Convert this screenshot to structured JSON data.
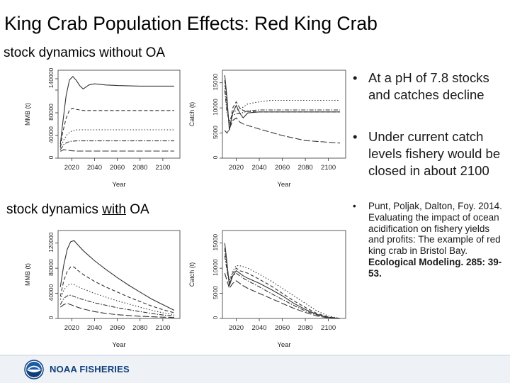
{
  "slide": {
    "title": "King Crab Population Effects: Red King Crab",
    "subtitle_without": "stock dynamics without OA",
    "subtitle_with_prefix": "stock dynamics ",
    "subtitle_with_emph": "with",
    "subtitle_with_suffix": " OA",
    "bullets": [
      {
        "marker": "•",
        "text": "At a pH of 7.8 stocks and catches decline"
      },
      {
        "marker": "•",
        "text": "Under current catch levels fishery would be closed in about 2100"
      }
    ],
    "citation": {
      "marker": "•",
      "text": "Punt, Poljak, Dalton, Foy. 2014. Evaluating the impact of ocean acidification on fishery yields and profits: The example of red king crab in Bristol Bay.",
      "journal": "Ecological Modeling. 285: 39-53."
    },
    "footer": {
      "logo_text": "NOAA FISHERIES",
      "logo_icon": "noaa-emblem-icon",
      "colors": {
        "brand": "#0f3f7a",
        "footer_bg": "#eef1f5"
      }
    }
  },
  "chart_data": [
    {
      "type": "line",
      "panel": "without-OA MMB",
      "xlabel": "Year",
      "ylabel": "MMB (t)",
      "xlim": [
        2008,
        2115
      ],
      "ylim": [
        0,
        155000
      ],
      "xticks": [
        2020,
        2040,
        2060,
        2080,
        2100
      ],
      "yticks": [
        0,
        40000,
        80000,
        120000,
        140000
      ],
      "ytick_labels": [
        "0",
        "40000",
        "80000",
        "",
        "140000"
      ],
      "grid": false,
      "series": [
        {
          "style": "solid",
          "x": [
            2010,
            2012,
            2015,
            2018,
            2021,
            2024,
            2027,
            2030,
            2035,
            2040,
            2050,
            2060,
            2080,
            2100,
            2110
          ],
          "values": [
            25000,
            60000,
            110000,
            138000,
            144000,
            137000,
            128000,
            122000,
            129000,
            131000,
            129000,
            128000,
            127000,
            127000,
            127000
          ]
        },
        {
          "style": "dashed",
          "x": [
            2010,
            2012,
            2015,
            2018,
            2021,
            2024,
            2030,
            2040,
            2060,
            2080,
            2110
          ],
          "values": [
            20000,
            45000,
            70000,
            85000,
            88000,
            86000,
            84000,
            84000,
            84000,
            84000,
            84000
          ]
        },
        {
          "style": "dotted",
          "x": [
            2010,
            2013,
            2016,
            2020,
            2025,
            2030,
            2040,
            2060,
            2110
          ],
          "values": [
            18000,
            32000,
            42000,
            48000,
            50000,
            50000,
            50000,
            50000,
            50000
          ]
        },
        {
          "style": "dashdot",
          "x": [
            2010,
            2013,
            2016,
            2020,
            2025,
            2030,
            2040,
            2060,
            2110
          ],
          "values": [
            15000,
            24000,
            28000,
            30000,
            30500,
            30500,
            30500,
            30500,
            30500
          ]
        },
        {
          "style": "longdash",
          "x": [
            2010,
            2013,
            2016,
            2020,
            2025,
            2030,
            2040,
            2060,
            2110
          ],
          "values": [
            12000,
            15000,
            14000,
            13000,
            12500,
            12500,
            12500,
            12500,
            12500
          ]
        }
      ]
    },
    {
      "type": "line",
      "panel": "without-OA Catch",
      "xlabel": "Year",
      "ylabel": "Catch (t)",
      "xlim": [
        2008,
        2115
      ],
      "ylim": [
        0,
        17500
      ],
      "xticks": [
        2020,
        2040,
        2060,
        2080,
        2100
      ],
      "yticks": [
        0,
        5000,
        10000,
        15000
      ],
      "grid": false,
      "series": [
        {
          "style": "solid",
          "x": [
            2010,
            2012,
            2014,
            2017,
            2020,
            2023,
            2026,
            2030,
            2040,
            2060,
            2080,
            2110
          ],
          "values": [
            16500,
            12000,
            5500,
            9000,
            10500,
            9000,
            8000,
            9000,
            9200,
            9200,
            9200,
            9200
          ]
        },
        {
          "style": "dashed",
          "x": [
            2010,
            2012,
            2014,
            2017,
            2020,
            2023,
            2026,
            2030,
            2040,
            2060,
            2080,
            2110
          ],
          "values": [
            15500,
            11000,
            6000,
            10000,
            11200,
            10000,
            9500,
            9300,
            9200,
            9200,
            9200,
            9200
          ]
        },
        {
          "style": "dotted",
          "x": [
            2010,
            2012,
            2014,
            2017,
            2020,
            2025,
            2030,
            2040,
            2050,
            2060,
            2080,
            2110
          ],
          "values": [
            14500,
            10000,
            7000,
            9000,
            9500,
            10000,
            10800,
            11200,
            11500,
            11500,
            11500,
            11500
          ]
        },
        {
          "style": "dashdot",
          "x": [
            2010,
            2012,
            2014,
            2017,
            2020,
            2025,
            2030,
            2040,
            2060,
            2080,
            2110
          ],
          "values": [
            13500,
            9000,
            7500,
            8500,
            8800,
            9000,
            9400,
            9600,
            9600,
            9600,
            9600
          ]
        },
        {
          "style": "longdash",
          "x": [
            2010,
            2012,
            2014,
            2017,
            2020,
            2023,
            2026,
            2030,
            2040,
            2060,
            2080,
            2110
          ],
          "values": [
            5500,
            5000,
            5800,
            7500,
            8000,
            7200,
            6800,
            6500,
            5800,
            4500,
            3500,
            3000
          ]
        }
      ]
    },
    {
      "type": "line",
      "panel": "with-OA MMB",
      "xlabel": "Year",
      "ylabel": "MMB (t)",
      "xlim": [
        2008,
        2115
      ],
      "ylim": [
        0,
        140000
      ],
      "xticks": [
        2020,
        2040,
        2060,
        2080,
        2100
      ],
      "yticks": [
        0,
        40000,
        80000,
        120000
      ],
      "grid": false,
      "series": [
        {
          "style": "solid",
          "x": [
            2010,
            2013,
            2016,
            2019,
            2022,
            2025,
            2030,
            2040,
            2050,
            2060,
            2070,
            2080,
            2090,
            2100,
            2110
          ],
          "values": [
            50000,
            85000,
            110000,
            122000,
            124000,
            118000,
            108000,
            92000,
            78000,
            65000,
            53000,
            42000,
            31000,
            22000,
            13000
          ]
        },
        {
          "style": "dashed",
          "x": [
            2010,
            2013,
            2016,
            2019,
            2022,
            2025,
            2030,
            2040,
            2050,
            2060,
            2070,
            2080,
            2090,
            2100,
            2110
          ],
          "values": [
            35000,
            60000,
            75000,
            82000,
            82000,
            77000,
            70000,
            59000,
            50000,
            42000,
            34000,
            27000,
            20000,
            14000,
            9000
          ]
        },
        {
          "style": "dotted",
          "x": [
            2010,
            2013,
            2016,
            2019,
            2022,
            2025,
            2030,
            2040,
            2050,
            2060,
            2070,
            2080,
            2090,
            2100,
            2110
          ],
          "values": [
            30000,
            45000,
            52000,
            55000,
            54000,
            51000,
            47000,
            40000,
            34000,
            28000,
            23000,
            18000,
            13000,
            9000,
            6000
          ]
        },
        {
          "style": "dashdot",
          "x": [
            2010,
            2013,
            2016,
            2019,
            2022,
            2025,
            2030,
            2040,
            2050,
            2060,
            2070,
            2080,
            2090,
            2100,
            2110
          ],
          "values": [
            22000,
            32000,
            36000,
            37000,
            35000,
            33000,
            30000,
            25000,
            21000,
            17000,
            14000,
            11000,
            8000,
            5500,
            4000
          ]
        },
        {
          "style": "longdash",
          "x": [
            2010,
            2013,
            2016,
            2019,
            2022,
            2025,
            2030,
            2040,
            2050,
            2060,
            2080,
            2100,
            2110
          ],
          "values": [
            18000,
            22000,
            24000,
            22000,
            20000,
            18000,
            15000,
            11000,
            8000,
            6000,
            3500,
            2000,
            1500
          ]
        }
      ]
    },
    {
      "type": "line",
      "panel": "with-OA Catch",
      "xlabel": "Year",
      "ylabel": "Catch (t)",
      "xlim": [
        2008,
        2115
      ],
      "ylim": [
        0,
        17500
      ],
      "xticks": [
        2020,
        2040,
        2060,
        2080,
        2100
      ],
      "yticks": [
        0,
        5000,
        10000,
        15000
      ],
      "grid": false,
      "series": [
        {
          "style": "solid",
          "x": [
            2010,
            2012,
            2014,
            2017,
            2020,
            2023,
            2026,
            2030,
            2040,
            2050,
            2060,
            2070,
            2080,
            2090,
            2100,
            2110
          ],
          "values": [
            15000,
            11000,
            6500,
            8500,
            9500,
            9000,
            8500,
            8000,
            7000,
            5800,
            4500,
            3000,
            1800,
            800,
            200,
            0
          ]
        },
        {
          "style": "dashed",
          "x": [
            2010,
            2012,
            2014,
            2017,
            2020,
            2023,
            2026,
            2030,
            2040,
            2050,
            2060,
            2070,
            2080,
            2090,
            2100,
            2110
          ],
          "values": [
            14000,
            10500,
            7000,
            9000,
            10000,
            9500,
            9300,
            9000,
            7800,
            6500,
            5000,
            3500,
            2200,
            1000,
            300,
            0
          ]
        },
        {
          "style": "dotted",
          "x": [
            2010,
            2012,
            2014,
            2017,
            2020,
            2023,
            2026,
            2030,
            2040,
            2050,
            2060,
            2070,
            2080,
            2090,
            2100,
            2110
          ],
          "values": [
            13500,
            10000,
            7500,
            9500,
            10500,
            10500,
            10300,
            10000,
            8800,
            7500,
            6000,
            4500,
            3000,
            1500,
            500,
            0
          ]
        },
        {
          "style": "dashdot",
          "x": [
            2010,
            2012,
            2014,
            2017,
            2020,
            2023,
            2026,
            2030,
            2040,
            2050,
            2060,
            2070,
            2080,
            2090,
            2100,
            2110
          ],
          "values": [
            12500,
            9500,
            7000,
            8500,
            9000,
            8500,
            8000,
            7500,
            6300,
            5000,
            3800,
            2600,
            1500,
            700,
            200,
            0
          ]
        },
        {
          "style": "longdash",
          "x": [
            2010,
            2012,
            2014,
            2017,
            2020,
            2023,
            2026,
            2030,
            2040,
            2050,
            2060,
            2070,
            2080,
            2090,
            2100,
            2110
          ],
          "values": [
            9000,
            7500,
            6000,
            7000,
            7500,
            7000,
            6500,
            6000,
            5000,
            4000,
            3000,
            2000,
            1200,
            500,
            100,
            0
          ]
        }
      ]
    }
  ]
}
